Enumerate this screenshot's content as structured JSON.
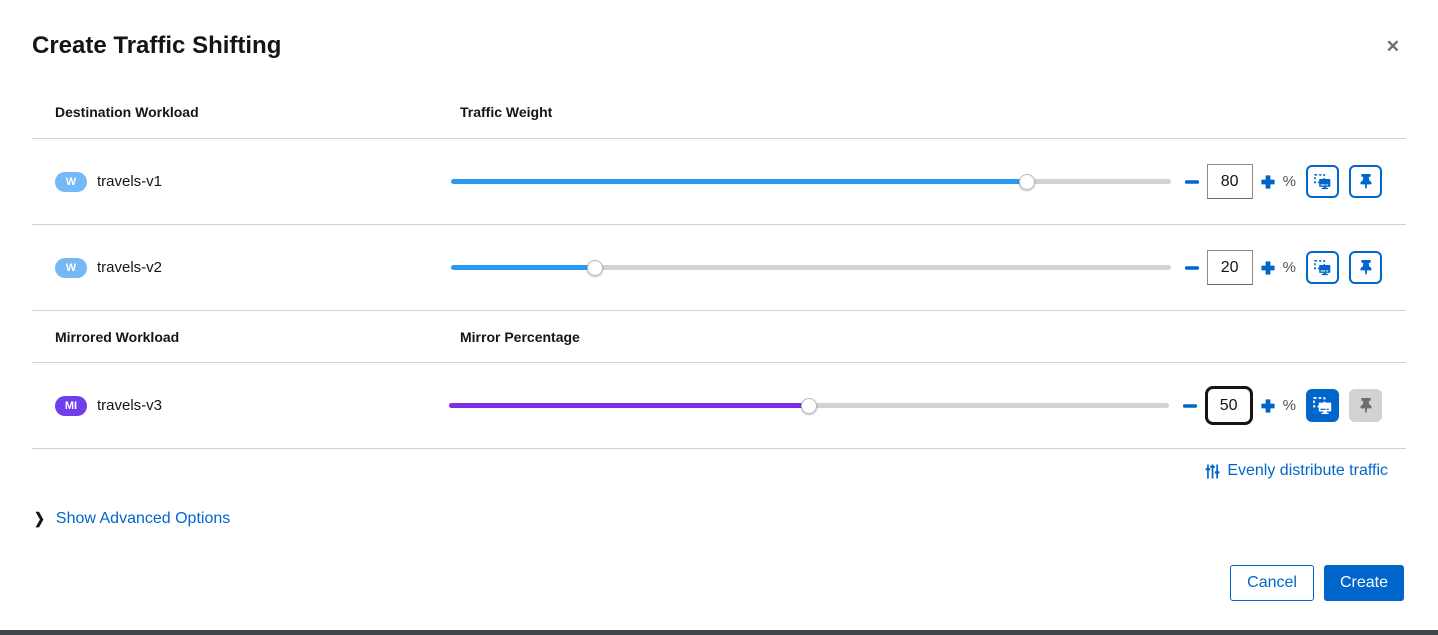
{
  "modal": {
    "title": "Create Traffic Shifting"
  },
  "traffic_section": {
    "col1": "Destination Workload",
    "col2": "Traffic Weight"
  },
  "mirror_section": {
    "col1": "Mirrored Workload",
    "col2": "Mirror Percentage"
  },
  "rows": [
    {
      "badge": "W",
      "name": "travels-v1",
      "value": 80,
      "display": "80"
    },
    {
      "badge": "W",
      "name": "travels-v2",
      "value": 20,
      "display": "20"
    },
    {
      "badge": "MI",
      "name": "travels-v3",
      "value": 50,
      "display": "50"
    }
  ],
  "labels": {
    "percent": "%",
    "evenly_distribute": "Evenly distribute traffic",
    "show_advanced": "Show Advanced Options",
    "close": "✕",
    "chevron": "❯"
  },
  "footer": {
    "cancel": "Cancel",
    "create": "Create"
  },
  "colors": {
    "primary": "#0066cc",
    "slider_blue": "#2b9af3",
    "slider_purple": "#7d2ce8",
    "badge_workload": "#74b8f5",
    "badge_mirrored": "#703fec",
    "rail": "#d2d2d2",
    "divider": "#d2d2d2",
    "text": "#151515",
    "muted": "#6a6e73",
    "bottom_bar": "#40454a"
  }
}
